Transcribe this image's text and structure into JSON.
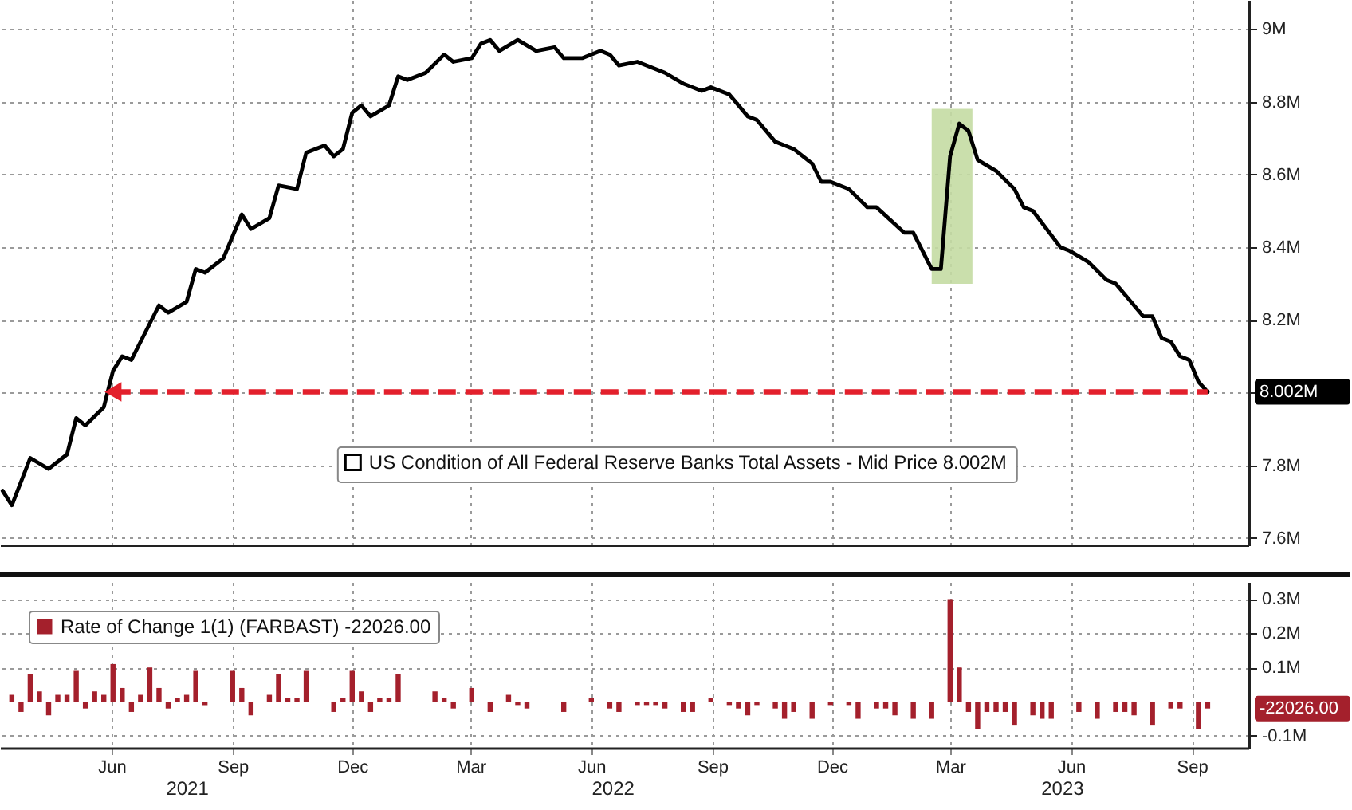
{
  "chart_data": [
    {
      "type": "line",
      "x": [
        "2021-03-24",
        "2021-03-31",
        "2021-04-14",
        "2021-04-28",
        "2021-05-12",
        "2021-05-19",
        "2021-05-26",
        "2021-06-09",
        "2021-06-16",
        "2021-06-23",
        "2021-06-30",
        "2021-07-21",
        "2021-07-28",
        "2021-08-11",
        "2021-08-18",
        "2021-08-25",
        "2021-09-08",
        "2021-09-22",
        "2021-09-29",
        "2021-10-13",
        "2021-10-20",
        "2021-11-03",
        "2021-11-10",
        "2021-11-24",
        "2021-12-01",
        "2021-12-08",
        "2021-12-15",
        "2021-12-22",
        "2021-12-29",
        "2022-01-12",
        "2022-01-19",
        "2022-01-26",
        "2022-02-09",
        "2022-02-23",
        "2022-03-02",
        "2022-03-16",
        "2022-03-23",
        "2022-03-30",
        "2022-04-06",
        "2022-04-20",
        "2022-05-04",
        "2022-05-18",
        "2022-05-25",
        "2022-06-08",
        "2022-06-22",
        "2022-06-29",
        "2022-07-06",
        "2022-07-20",
        "2022-08-10",
        "2022-08-24",
        "2022-09-07",
        "2022-09-14",
        "2022-09-28",
        "2022-10-12",
        "2022-10-19",
        "2022-11-02",
        "2022-11-16",
        "2022-11-30",
        "2022-12-07",
        "2022-12-14",
        "2022-12-28",
        "2023-01-11",
        "2023-01-18",
        "2023-02-08",
        "2023-02-15",
        "2023-02-22",
        "2023-03-01",
        "2023-03-08",
        "2023-03-15",
        "2023-03-22",
        "2023-03-29",
        "2023-04-05",
        "2023-04-19",
        "2023-05-03",
        "2023-05-10",
        "2023-05-17",
        "2023-06-07",
        "2023-06-14",
        "2023-06-28",
        "2023-07-12",
        "2023-07-19",
        "2023-08-09",
        "2023-08-16",
        "2023-08-23",
        "2023-08-30",
        "2023-09-06",
        "2023-09-13",
        "2023-09-20",
        "2023-09-27"
      ],
      "series": [
        {
          "name": "US Condition of All Federal Reserve Banks Total Assets - Mid Price 8.002M",
          "color": "#000000",
          "values": [
            7.73,
            7.69,
            7.82,
            7.79,
            7.83,
            7.93,
            7.91,
            7.96,
            8.06,
            8.1,
            8.09,
            8.24,
            8.22,
            8.25,
            8.34,
            8.33,
            8.37,
            8.49,
            8.45,
            8.48,
            8.57,
            8.56,
            8.66,
            8.68,
            8.65,
            8.67,
            8.77,
            8.79,
            8.76,
            8.79,
            8.87,
            8.86,
            8.88,
            8.93,
            8.91,
            8.92,
            8.96,
            8.97,
            8.94,
            8.97,
            8.94,
            8.95,
            8.92,
            8.92,
            8.94,
            8.93,
            8.9,
            8.91,
            8.88,
            8.85,
            8.83,
            8.84,
            8.82,
            8.76,
            8.75,
            8.69,
            8.67,
            8.63,
            8.58,
            8.58,
            8.56,
            8.51,
            8.51,
            8.44,
            8.44,
            8.39,
            8.34,
            8.34,
            8.65,
            8.74,
            8.72,
            8.64,
            8.61,
            8.56,
            8.51,
            8.5,
            8.4,
            8.39,
            8.36,
            8.31,
            8.3,
            8.21,
            8.21,
            8.15,
            8.14,
            8.1,
            8.09,
            8.03,
            8.002
          ]
        }
      ],
      "xlim": [
        "2021-03-22",
        "2023-10-28"
      ],
      "xticks": [
        {
          "value": "2021-06-15",
          "label": null
        },
        {
          "value": "2021-09-15",
          "label": null
        },
        {
          "value": "2021-12-15",
          "label": null
        },
        {
          "value": "2022-03-15",
          "label": null
        },
        {
          "value": "2022-06-15",
          "label": null
        },
        {
          "value": "2022-09-15",
          "label": null
        },
        {
          "value": "2022-12-15",
          "label": null
        },
        {
          "value": "2023-03-15",
          "label": null
        },
        {
          "value": "2023-06-15",
          "label": null
        },
        {
          "value": "2023-09-15",
          "label": null
        }
      ],
      "ylim": [
        7.58,
        9.08
      ],
      "yticks": [
        {
          "value": 7.6,
          "label": "7.6M"
        },
        {
          "value": 7.8,
          "label": "7.8M"
        },
        {
          "value": 8.0,
          "label": null
        },
        {
          "value": 8.2,
          "label": "8.2M"
        },
        {
          "value": 8.4,
          "label": "8.4M"
        },
        {
          "value": 8.6,
          "label": "8.6M"
        },
        {
          "value": 8.8,
          "label": "8.8M"
        },
        {
          "value": 9,
          "label": "9M"
        }
      ],
      "tick_labels": "y",
      "grid": true,
      "legend": "bottom",
      "ref_lines": [
        {
          "axis": "y",
          "value": 8.002,
          "color": "#e3202c",
          "line_style": "dashed"
        }
      ],
      "bands": [
        {
          "axis": "x",
          "from": "2023-03-01",
          "to": "2023-04-01",
          "color": "#c4dba3"
        }
      ],
      "annotations": [
        "8.002M"
      ]
    },
    {
      "type": "bar",
      "x": [
        "2021-03-31",
        "2021-04-07",
        "2021-04-14",
        "2021-04-21",
        "2021-04-28",
        "2021-05-05",
        "2021-05-12",
        "2021-05-19",
        "2021-05-26",
        "2021-06-02",
        "2021-06-09",
        "2021-06-16",
        "2021-06-23",
        "2021-06-30",
        "2021-07-07",
        "2021-07-14",
        "2021-07-21",
        "2021-07-28",
        "2021-08-04",
        "2021-08-11",
        "2021-08-18",
        "2021-08-25",
        "2021-09-15",
        "2021-09-22",
        "2021-09-29",
        "2021-10-13",
        "2021-10-20",
        "2021-10-27",
        "2021-11-03",
        "2021-11-10",
        "2021-12-01",
        "2021-12-08",
        "2021-12-15",
        "2021-12-22",
        "2021-12-29",
        "2022-01-05",
        "2022-01-12",
        "2022-01-19",
        "2022-02-16",
        "2022-02-23",
        "2022-03-02",
        "2022-03-16",
        "2022-03-30",
        "2022-04-13",
        "2022-04-20",
        "2022-04-27",
        "2022-05-25",
        "2022-06-15",
        "2022-06-29",
        "2022-07-06",
        "2022-07-20",
        "2022-07-27",
        "2022-08-03",
        "2022-08-10",
        "2022-08-24",
        "2022-08-31",
        "2022-09-14",
        "2022-09-28",
        "2022-10-05",
        "2022-10-12",
        "2022-10-19",
        "2022-11-02",
        "2022-11-09",
        "2022-11-16",
        "2022-11-30",
        "2022-12-14",
        "2022-12-28",
        "2023-01-04",
        "2023-01-18",
        "2023-01-25",
        "2023-02-01",
        "2023-02-15",
        "2023-03-01",
        "2023-03-15",
        "2023-03-22",
        "2023-03-29",
        "2023-04-05",
        "2023-04-12",
        "2023-04-19",
        "2023-04-26",
        "2023-05-03",
        "2023-05-17",
        "2023-05-24",
        "2023-05-31",
        "2023-06-21",
        "2023-07-05",
        "2023-07-19",
        "2023-07-26",
        "2023-08-02",
        "2023-08-16",
        "2023-08-30",
        "2023-09-06",
        "2023-09-20",
        "2023-09-27"
      ],
      "series": [
        {
          "name": "Rate of Change 1(1) (FARBAST) -22026.00",
          "color": "#a4202c",
          "values": [
            0.02,
            -0.03,
            0.08,
            0.03,
            -0.04,
            0.02,
            0.02,
            0.09,
            -0.02,
            0.03,
            0.02,
            0.11,
            0.04,
            -0.03,
            0.02,
            0.1,
            0.04,
            -0.02,
            0.01,
            0.02,
            0.09,
            -0.01,
            0.09,
            0.04,
            -0.04,
            0.02,
            0.08,
            0.01,
            0.01,
            0.09,
            -0.03,
            0.01,
            0.09,
            0.03,
            -0.03,
            0.01,
            0.01,
            0.08,
            0.03,
            0.01,
            -0.02,
            0.04,
            -0.03,
            0.02,
            -0.01,
            -0.02,
            -0.03,
            0.01,
            -0.02,
            -0.03,
            -0.01,
            -0.01,
            -0.01,
            -0.02,
            -0.03,
            -0.03,
            0.01,
            -0.01,
            -0.02,
            -0.04,
            -0.01,
            -0.02,
            -0.05,
            -0.03,
            -0.05,
            -0.01,
            -0.01,
            -0.05,
            -0.02,
            -0.02,
            -0.04,
            -0.05,
            -0.05,
            0.3,
            0.1,
            -0.03,
            -0.08,
            -0.03,
            -0.03,
            -0.03,
            -0.07,
            -0.04,
            -0.05,
            -0.05,
            -0.03,
            -0.05,
            -0.03,
            -0.03,
            -0.04,
            -0.07,
            -0.02,
            -0.02,
            -0.08,
            -0.02
          ]
        }
      ],
      "xlim": [
        "2021-03-22",
        "2023-10-28"
      ],
      "xticks": [
        {
          "value": "2021-06-15",
          "label": "Jun"
        },
        {
          "value": "2021-09-15",
          "label": "Sep"
        },
        {
          "value": "2021-12-15",
          "label": "Dec"
        },
        {
          "value": "2022-03-15",
          "label": "Mar"
        },
        {
          "value": "2022-06-15",
          "label": "Jun"
        },
        {
          "value": "2022-09-15",
          "label": "Sep"
        },
        {
          "value": "2022-12-15",
          "label": "Dec"
        },
        {
          "value": "2023-03-15",
          "label": "Mar"
        },
        {
          "value": "2023-06-15",
          "label": "Jun"
        },
        {
          "value": "2023-09-15",
          "label": "Sep"
        }
      ],
      "x2lim": [
        "2021-03-22",
        "2023-10-28"
      ],
      "x2ticks": [
        {
          "value": "2021-08-11",
          "label": "2021"
        },
        {
          "value": "2022-07-01",
          "label": "2022"
        },
        {
          "value": "2023-06-08",
          "label": "2023"
        }
      ],
      "ylim": [
        -0.135,
        0.35
      ],
      "yticks": [
        {
          "value": -0.1,
          "label": "-0.1M"
        },
        {
          "value": 0.1,
          "label": "0.1M"
        },
        {
          "value": 0.2,
          "label": "0.2M"
        },
        {
          "value": 0.3,
          "label": "0.3M"
        }
      ],
      "grid": true,
      "legend": "top left",
      "annotations": [
        "-22026.00"
      ]
    }
  ]
}
